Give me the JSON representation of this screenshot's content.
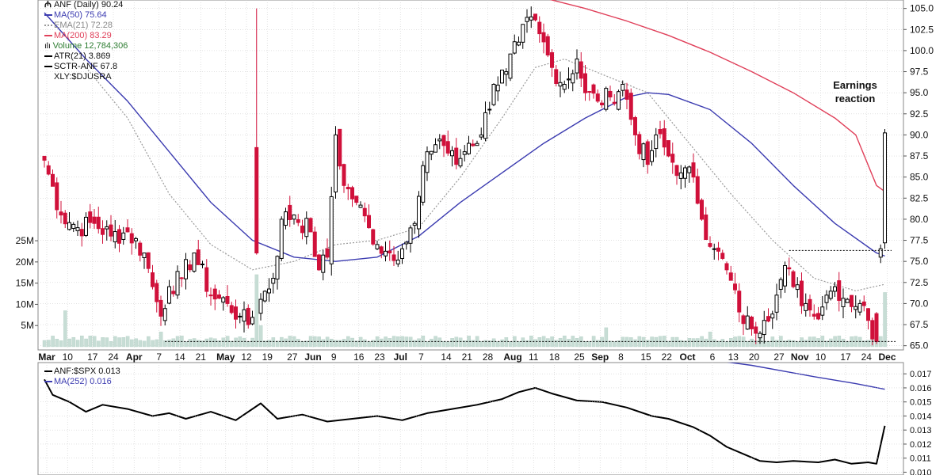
{
  "colors": {
    "up": "#000000",
    "down": "#d0103a",
    "ma50": "#3b3bb0",
    "ema21": "#9a9a9a",
    "ma200": "#e0405a",
    "volume": "#c7ddd5",
    "ratio": "#000000",
    "ratio_ma": "#3b3bb0",
    "grid": "#cfcfcf"
  },
  "legend_main": [
    {
      "text": "ANF (Daily) 90.24",
      "icon": "candlestick-icon",
      "color": "#000000"
    },
    {
      "text": "MA(50) 75.64",
      "icon": "line-swatch",
      "color": "#3b3bb0"
    },
    {
      "text": "EMA(21) 72.28",
      "icon": "dotted-swatch",
      "color": "#9a9a9a"
    },
    {
      "text": "MA(200) 83.29",
      "icon": "line-swatch",
      "color": "#e0405a"
    },
    {
      "text": "Volume 12,784,306",
      "icon": "volume-bars-icon",
      "color": "#2e7d32"
    },
    {
      "text": "ATR(21) 3.869",
      "icon": "line-swatch",
      "color": "#000000"
    },
    {
      "text": "SCTR-ANF 67.8",
      "icon": "line-swatch",
      "color": "#000000"
    },
    {
      "text": "XLY:$DJUSRA",
      "icon": "none",
      "color": "#000000"
    }
  ],
  "legend_lower": [
    {
      "text": "ANF:$SPX 0.013",
      "color": "#000000"
    },
    {
      "text": "MA(252) 0.016",
      "color": "#3b3bb0"
    }
  ],
  "annotation": "Earnings reaction",
  "chart_data": [
    {
      "type": "candlestick",
      "title": "ANF (Daily) 90.24",
      "ylim": [
        64.5,
        106
      ],
      "y_ticks": [
        "105.0",
        "102.5",
        "100.0",
        "97.5",
        "95.0",
        "92.5",
        "90.0",
        "87.5",
        "85.0",
        "82.5",
        "80.0",
        "77.5",
        "75.0",
        "72.5",
        "70.0",
        "67.5",
        "65.0"
      ],
      "x_labels": [
        "Mar",
        "10",
        "17",
        "24",
        "Apr",
        "7",
        "14",
        "21",
        "May",
        "12",
        "19",
        "27",
        "Jun",
        "9",
        "16",
        "23",
        "Jul",
        "7",
        "14",
        "21",
        "28",
        "Aug",
        "11",
        "18",
        "25",
        "Sep",
        "8",
        "15",
        "22",
        "Oct",
        "6",
        "13",
        "20",
        "27",
        "Nov",
        "10",
        "17",
        "24",
        "Dec"
      ],
      "bold_x_labels": [
        "Mar",
        "Apr",
        "May",
        "Jun",
        "Jul",
        "Aug",
        "Sep",
        "Oct",
        "Nov",
        "Dec"
      ],
      "anchors": [
        {
          "i": 0,
          "c": 87.0
        },
        {
          "i": 4,
          "c": 80.5
        },
        {
          "i": 8,
          "c": 79.0
        },
        {
          "i": 12,
          "c": 79.5
        },
        {
          "i": 16,
          "c": 78.0
        },
        {
          "i": 20,
          "c": 78.5
        },
        {
          "i": 24,
          "c": 76.0
        },
        {
          "i": 26,
          "c": 72.0
        },
        {
          "i": 28,
          "c": 68.5
        },
        {
          "i": 30,
          "c": 72.0
        },
        {
          "i": 33,
          "c": 73.0
        },
        {
          "i": 36,
          "c": 76.0
        },
        {
          "i": 40,
          "c": 71.0
        },
        {
          "i": 44,
          "c": 70.0
        },
        {
          "i": 47,
          "c": 68.5
        },
        {
          "i": 49,
          "c": 67.5
        },
        {
          "i": 52,
          "c": 70.5
        },
        {
          "i": 55,
          "c": 73.0
        },
        {
          "i": 57,
          "c": 80.0
        },
        {
          "i": 60,
          "c": 80.5
        },
        {
          "i": 64,
          "c": 78.5
        },
        {
          "i": 66,
          "c": 74.0
        },
        {
          "i": 68,
          "c": 75.5
        },
        {
          "i": 70,
          "c": 90.0
        },
        {
          "i": 72,
          "c": 84.0
        },
        {
          "i": 75,
          "c": 82.0
        },
        {
          "i": 78,
          "c": 79.0
        },
        {
          "i": 80,
          "c": 77.0
        },
        {
          "i": 83,
          "c": 76.0
        },
        {
          "i": 86,
          "c": 76.5
        },
        {
          "i": 89,
          "c": 79.5
        },
        {
          "i": 92,
          "c": 88.0
        },
        {
          "i": 95,
          "c": 89.5
        },
        {
          "i": 99,
          "c": 86.5
        },
        {
          "i": 102,
          "c": 89.0
        },
        {
          "i": 105,
          "c": 90.0
        },
        {
          "i": 108,
          "c": 96.0
        },
        {
          "i": 111,
          "c": 97.5
        },
        {
          "i": 114,
          "c": 101.0
        },
        {
          "i": 117,
          "c": 104.0
        },
        {
          "i": 119,
          "c": 102.0
        },
        {
          "i": 122,
          "c": 98.0
        },
        {
          "i": 125,
          "c": 96.0
        },
        {
          "i": 128,
          "c": 99.0
        },
        {
          "i": 130,
          "c": 95.0
        },
        {
          "i": 133,
          "c": 94.0
        },
        {
          "i": 136,
          "c": 94.5
        },
        {
          "i": 139,
          "c": 96.0
        },
        {
          "i": 142,
          "c": 90.0
        },
        {
          "i": 145,
          "c": 86.5
        },
        {
          "i": 147,
          "c": 90.0
        },
        {
          "i": 150,
          "c": 87.5
        },
        {
          "i": 153,
          "c": 85.5
        },
        {
          "i": 156,
          "c": 85.0
        },
        {
          "i": 158,
          "c": 80.0
        },
        {
          "i": 161,
          "c": 76.5
        },
        {
          "i": 164,
          "c": 74.0
        },
        {
          "i": 167,
          "c": 69.0
        },
        {
          "i": 170,
          "c": 67.0
        },
        {
          "i": 173,
          "c": 68.0
        },
        {
          "i": 176,
          "c": 71.0
        },
        {
          "i": 178,
          "c": 74.5
        },
        {
          "i": 180,
          "c": 72.0
        },
        {
          "i": 183,
          "c": 70.0
        },
        {
          "i": 185,
          "c": 68.5
        },
        {
          "i": 188,
          "c": 71.0
        },
        {
          "i": 190,
          "c": 72.0
        },
        {
          "i": 193,
          "c": 70.5
        },
        {
          "i": 196,
          "c": 70.0
        },
        {
          "i": 198,
          "c": 68.0
        },
        {
          "i": 200,
          "c": 65.5
        },
        {
          "i": 201,
          "c": 76.5
        },
        {
          "i": 202,
          "c": 90.24
        }
      ],
      "special_bars": [
        {
          "i": 51,
          "o": 76.0,
          "h": 105.0,
          "l": 75.8,
          "c": 88.5,
          "kind": "down"
        }
      ],
      "ma50": [
        [
          0,
          104.5
        ],
        [
          10,
          99.0
        ],
        [
          20,
          94.0
        ],
        [
          30,
          88.0
        ],
        [
          40,
          82.0
        ],
        [
          50,
          77.5
        ],
        [
          60,
          75.5
        ],
        [
          70,
          75.0
        ],
        [
          80,
          75.5
        ],
        [
          90,
          78.0
        ],
        [
          100,
          82.0
        ],
        [
          110,
          85.5
        ],
        [
          120,
          89.0
        ],
        [
          130,
          92.0
        ],
        [
          140,
          94.5
        ],
        [
          145,
          95.0
        ],
        [
          150,
          94.8
        ],
        [
          160,
          93.0
        ],
        [
          170,
          89.0
        ],
        [
          180,
          84.0
        ],
        [
          190,
          79.5
        ],
        [
          200,
          76.0
        ],
        [
          202,
          75.64
        ]
      ],
      "ma200": [
        [
          118,
          106.5
        ],
        [
          130,
          105.0
        ],
        [
          140,
          103.5
        ],
        [
          150,
          101.8
        ],
        [
          160,
          99.8
        ],
        [
          170,
          97.5
        ],
        [
          180,
          95.0
        ],
        [
          190,
          92.0
        ],
        [
          195,
          90.0
        ],
        [
          200,
          84.0
        ],
        [
          202,
          83.29
        ]
      ],
      "ema21": [
        [
          10,
          98.0
        ],
        [
          20,
          92.0
        ],
        [
          30,
          83.0
        ],
        [
          40,
          77.0
        ],
        [
          50,
          74.0
        ],
        [
          60,
          75.0
        ],
        [
          70,
          77.0
        ],
        [
          80,
          77.5
        ],
        [
          90,
          79.0
        ],
        [
          100,
          85.0
        ],
        [
          110,
          92.0
        ],
        [
          118,
          98.0
        ],
        [
          125,
          99.0
        ],
        [
          135,
          97.0
        ],
        [
          145,
          95.0
        ],
        [
          155,
          89.0
        ],
        [
          165,
          83.0
        ],
        [
          175,
          77.5
        ],
        [
          185,
          73.0
        ],
        [
          195,
          71.5
        ],
        [
          202,
          72.28
        ]
      ],
      "volume_max_millions": 28,
      "volume_ticks": [
        "25M",
        "20M",
        "15M",
        "10M",
        "5M"
      ],
      "volume_spikes": [
        {
          "i": 5,
          "v": 8.5
        },
        {
          "i": 28,
          "v": 3.5
        },
        {
          "i": 51,
          "v": 17
        },
        {
          "i": 52,
          "v": 5
        },
        {
          "i": 135,
          "v": 4.5
        },
        {
          "i": 160,
          "v": 3.5
        },
        {
          "i": 202,
          "v": 12.8
        }
      ],
      "support_line": {
        "value": 65.5,
        "from_i": 29,
        "to_i": 210
      },
      "resistance_line": {
        "value": 76.3,
        "from_i": 179,
        "to_i": 210
      }
    },
    {
      "type": "line",
      "title": "ANF:$SPX 0.013",
      "ylim": [
        0.0098,
        0.0178
      ],
      "y_ticks": [
        "0.017",
        "0.016",
        "0.015",
        "0.014",
        "0.013",
        "0.012",
        "0.011",
        "0.010"
      ],
      "ratio": [
        [
          0,
          0.0166
        ],
        [
          2,
          0.0155
        ],
        [
          6,
          0.015
        ],
        [
          10,
          0.0143
        ],
        [
          14,
          0.0148
        ],
        [
          20,
          0.0145
        ],
        [
          26,
          0.014
        ],
        [
          30,
          0.0142
        ],
        [
          34,
          0.0138
        ],
        [
          40,
          0.0143
        ],
        [
          46,
          0.0137
        ],
        [
          52,
          0.0149
        ],
        [
          56,
          0.0138
        ],
        [
          62,
          0.0141
        ],
        [
          68,
          0.0136
        ],
        [
          74,
          0.0138
        ],
        [
          80,
          0.014
        ],
        [
          86,
          0.0137
        ],
        [
          92,
          0.0142
        ],
        [
          98,
          0.0145
        ],
        [
          104,
          0.0148
        ],
        [
          110,
          0.0152
        ],
        [
          114,
          0.0157
        ],
        [
          118,
          0.016
        ],
        [
          122,
          0.0156
        ],
        [
          128,
          0.0151
        ],
        [
          134,
          0.015
        ],
        [
          140,
          0.0146
        ],
        [
          146,
          0.014
        ],
        [
          150,
          0.0138
        ],
        [
          156,
          0.0132
        ],
        [
          160,
          0.0126
        ],
        [
          164,
          0.0118
        ],
        [
          168,
          0.0113
        ],
        [
          172,
          0.0108
        ],
        [
          176,
          0.0107
        ],
        [
          180,
          0.0108
        ],
        [
          186,
          0.0107
        ],
        [
          190,
          0.0109
        ],
        [
          194,
          0.0106
        ],
        [
          198,
          0.0107
        ],
        [
          200,
          0.0106
        ],
        [
          202,
          0.0133
        ]
      ],
      "ratio_ma": [
        [
          150,
          0.0184
        ],
        [
          170,
          0.0176
        ],
        [
          185,
          0.0168
        ],
        [
          195,
          0.0163
        ],
        [
          202,
          0.0159
        ]
      ]
    }
  ]
}
